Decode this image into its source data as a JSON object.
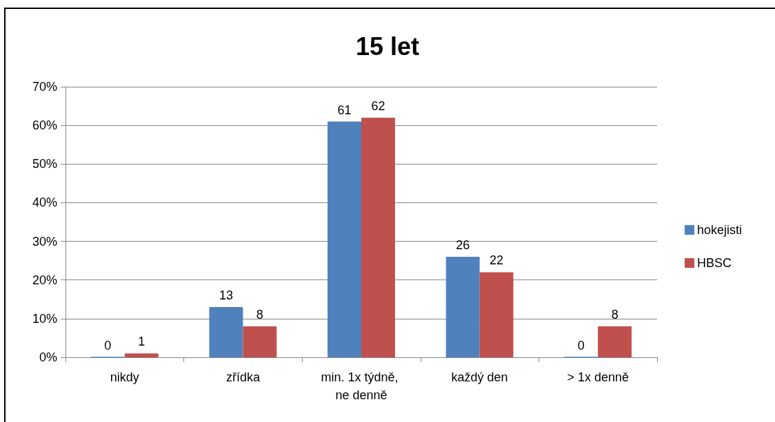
{
  "chart_data": {
    "type": "bar",
    "title": "15 let",
    "categories": [
      "nikdy",
      "zřídka",
      "min. 1x týdně, ne denně",
      "každý den",
      "> 1x denně"
    ],
    "series": [
      {
        "name": "hokejisti",
        "color": "#4f81bd",
        "values": [
          0,
          13,
          61,
          26,
          0
        ]
      },
      {
        "name": "HBSC",
        "color": "#c0504d",
        "values": [
          1,
          8,
          62,
          22,
          8
        ]
      }
    ],
    "ylim": [
      0,
      70
    ],
    "yticks": [
      {
        "value": 0,
        "label": "0%"
      },
      {
        "value": 10,
        "label": "10%"
      },
      {
        "value": 20,
        "label": "20%"
      },
      {
        "value": 30,
        "label": "30%"
      },
      {
        "value": 40,
        "label": "40%"
      },
      {
        "value": 50,
        "label": "50%"
      },
      {
        "value": 60,
        "label": "60%"
      },
      {
        "value": 70,
        "label": "70%"
      }
    ],
    "grid": "y",
    "legend": "right",
    "data_labels": true
  }
}
